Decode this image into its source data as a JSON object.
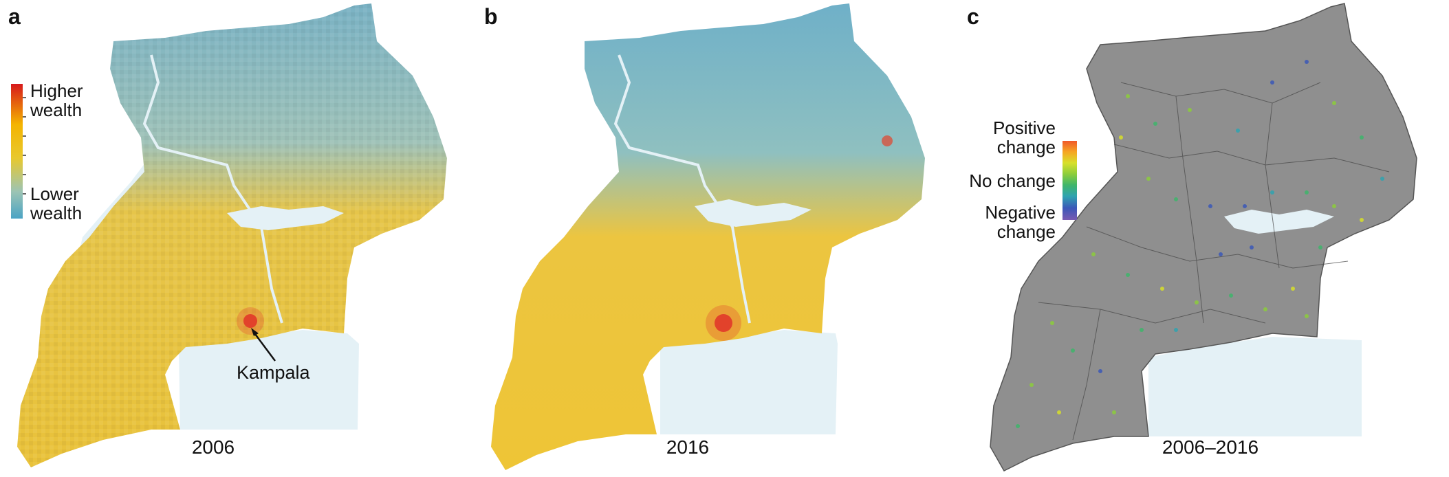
{
  "panels": [
    {
      "letter": "a",
      "year": "2006"
    },
    {
      "letter": "b",
      "year": "2016"
    },
    {
      "letter": "c",
      "year": "2006–2016"
    }
  ],
  "legend_wealth": {
    "high_label": "Higher\nwealth",
    "low_label": "Lower\nwealth",
    "colors": [
      "#d7191c",
      "#f4b400",
      "#e8c82e",
      "#9cc4b4",
      "#4aa3c4"
    ]
  },
  "legend_change": {
    "positive_label": "Positive\nchange",
    "none_label": "No change",
    "negative_label": "Negative\nchange",
    "colors": [
      "#f0592a",
      "#f6a623",
      "#d7e02a",
      "#8ccd3c",
      "#3fb56b",
      "#2fa3b0",
      "#3b58b8",
      "#7a5bb2"
    ]
  },
  "annotation": {
    "label": "Kampala"
  },
  "colors": {
    "lake": "#e4f1f6",
    "land_c": "#8f8f8f",
    "yellow": "#eec536",
    "blue": "#7fb8c6",
    "red": "#e2432b"
  }
}
